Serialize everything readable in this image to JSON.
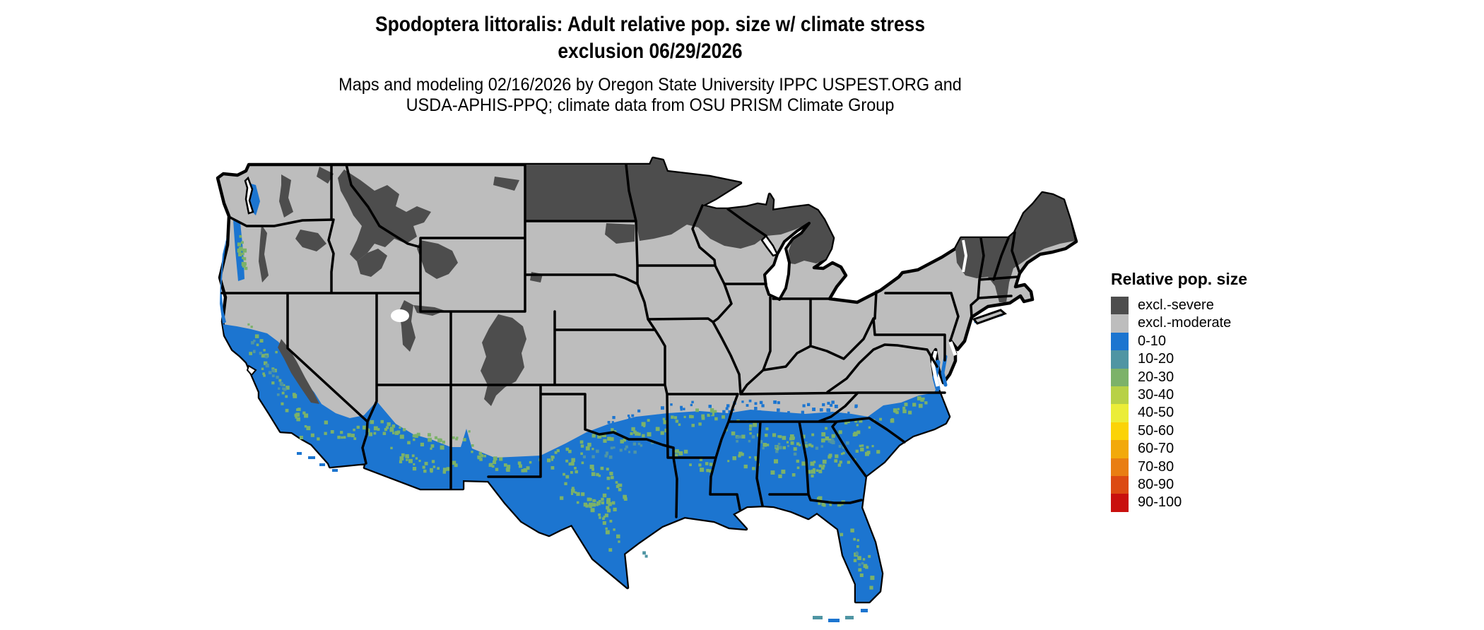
{
  "title": {
    "line1": "Spodoptera littoralis: Adult relative pop. size w/ climate stress",
    "line2": "exclusion 06/29/2026"
  },
  "subtitle": {
    "line1": "Maps and modeling 02/16/2026 by Oregon State University IPPC USPEST.ORG and",
    "line2": "USDA-APHIS-PPQ; climate data from OSU PRISM Climate Group"
  },
  "legend": {
    "title": "Relative pop. size",
    "items": [
      {
        "label": "excl.-severe",
        "color": "#4d4d4d"
      },
      {
        "label": "excl.-moderate",
        "color": "#bdbdbd"
      },
      {
        "label": "0-10",
        "color": "#1c75d0"
      },
      {
        "label": "10-20",
        "color": "#4f95a3"
      },
      {
        "label": "20-30",
        "color": "#7cb269"
      },
      {
        "label": "30-40",
        "color": "#b8d146"
      },
      {
        "label": "40-50",
        "color": "#ebed38"
      },
      {
        "label": "50-60",
        "color": "#fbd307"
      },
      {
        "label": "60-70",
        "color": "#f2a90b"
      },
      {
        "label": "70-80",
        "color": "#e97e12"
      },
      {
        "label": "80-90",
        "color": "#dc4a12"
      },
      {
        "label": "90-100",
        "color": "#c9100e"
      }
    ]
  },
  "map": {
    "type": "us-conus-choropleth",
    "border_color": "#000000",
    "palette": {
      "severe": "#4d4d4d",
      "moderate": "#bdbdbd",
      "b0_10": "#1c75d0",
      "b10_20": "#4f95a3",
      "b20_30": "#7cb269",
      "water": "#ffffff"
    },
    "regions": [
      {
        "name": "excluded-severe",
        "color_key": "severe",
        "areas": "North Dakota, Minnesota, northern Wisconsin, upper Michigan, northern lower Michigan, Maine and northern New England, Adirondacks, northern Rockies (Idaho/Montana), Yellowstone, Colorado Rockies, Wasatch, Sierra Nevada, Cascades, Black Hills, northeast South Dakota"
      },
      {
        "name": "excluded-moderate",
        "color_key": "moderate",
        "areas": "most of the central and northern United States"
      },
      {
        "name": "population-0-10",
        "color_key": "b0_10",
        "areas": "southern tier: southern California, southern Arizona and New Mexico, most of Texas, Gulf Coast states, Florida, southern Atlantic coastal plain, Chesapeake Bay shores, Pacific coastal valleys (Puget lowlands, Willamette Valley, California Central Valley)"
      },
      {
        "name": "population-10-30",
        "color_key": "b10_20",
        "areas": "speckled 10-20 and 20-30 transition zones inside and along the edges of the southern band"
      }
    ]
  }
}
